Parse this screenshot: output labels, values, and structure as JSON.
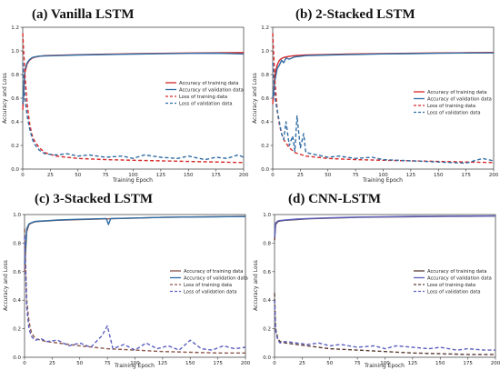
{
  "chart_data": [
    {
      "type": "line",
      "title": "(a)  Vanilla LSTM",
      "xlabel": "Training Epoch",
      "ylabel": "Accuracy and Loss",
      "xlim": [
        0,
        200
      ],
      "ylim": [
        0,
        1.2
      ],
      "xticks": [
        0,
        25,
        50,
        75,
        100,
        125,
        150,
        175,
        200
      ],
      "yticks": [
        0.0,
        0.2,
        0.4,
        0.6,
        0.8,
        1.0,
        1.2
      ],
      "legend_position": "right",
      "series": [
        {
          "name": "Accuracy of training data",
          "color": "#d62728",
          "dash": "solid",
          "x": [
            0,
            2,
            4,
            6,
            8,
            10,
            15,
            20,
            30,
            50,
            75,
            100,
            125,
            150,
            175,
            200
          ],
          "y": [
            0.5,
            0.82,
            0.89,
            0.92,
            0.935,
            0.945,
            0.955,
            0.96,
            0.963,
            0.968,
            0.972,
            0.976,
            0.979,
            0.982,
            0.984,
            0.986
          ]
        },
        {
          "name": "Accuracy of validation data",
          "color": "#2f6ca3",
          "dash": "solid",
          "x": [
            0,
            2,
            4,
            6,
            8,
            10,
            15,
            20,
            30,
            50,
            75,
            100,
            125,
            150,
            175,
            200
          ],
          "y": [
            0.55,
            0.84,
            0.9,
            0.925,
            0.94,
            0.948,
            0.956,
            0.958,
            0.96,
            0.965,
            0.969,
            0.973,
            0.976,
            0.979,
            0.981,
            0.975
          ]
        },
        {
          "name": "Loss of training data",
          "color": "#d62728",
          "dash": "dashed",
          "x": [
            0,
            2,
            4,
            6,
            8,
            10,
            15,
            20,
            30,
            40,
            50,
            75,
            100,
            125,
            150,
            175,
            200
          ],
          "y": [
            1.15,
            0.8,
            0.55,
            0.4,
            0.3,
            0.25,
            0.18,
            0.14,
            0.11,
            0.1,
            0.09,
            0.08,
            0.075,
            0.07,
            0.065,
            0.06,
            0.055
          ]
        },
        {
          "name": "Loss of validation data",
          "color": "#2f6ca3",
          "dash": "dashed",
          "x": [
            0,
            2,
            4,
            6,
            8,
            10,
            15,
            20,
            30,
            40,
            50,
            60,
            75,
            90,
            100,
            110,
            125,
            140,
            150,
            165,
            175,
            185,
            195,
            200
          ],
          "y": [
            0.9,
            0.6,
            0.45,
            0.35,
            0.28,
            0.22,
            0.16,
            0.13,
            0.12,
            0.13,
            0.11,
            0.12,
            0.1,
            0.11,
            0.09,
            0.12,
            0.1,
            0.09,
            0.11,
            0.08,
            0.1,
            0.09,
            0.12,
            0.1
          ]
        }
      ]
    },
    {
      "type": "line",
      "title": "(b)  2-Stacked LSTM",
      "xlabel": "Training Epoch",
      "ylabel": "Accuracy and Loss",
      "xlim": [
        0,
        200
      ],
      "ylim": [
        0,
        1.2
      ],
      "xticks": [
        0,
        25,
        50,
        75,
        100,
        125,
        150,
        175,
        200
      ],
      "yticks": [
        0.0,
        0.2,
        0.4,
        0.6,
        0.8,
        1.0,
        1.2
      ],
      "legend_position": "right",
      "series": [
        {
          "name": "Accuracy of training data",
          "color": "#d62728",
          "dash": "solid",
          "x": [
            0,
            2,
            4,
            6,
            8,
            10,
            15,
            20,
            30,
            50,
            75,
            100,
            125,
            150,
            175,
            200
          ],
          "y": [
            0.55,
            0.8,
            0.88,
            0.92,
            0.935,
            0.945,
            0.955,
            0.96,
            0.965,
            0.97,
            0.975,
            0.978,
            0.98,
            0.983,
            0.985,
            0.987
          ]
        },
        {
          "name": "Accuracy of validation data",
          "color": "#2f6ca3",
          "dash": "solid",
          "x": [
            0,
            2,
            4,
            6,
            8,
            10,
            12,
            15,
            20,
            25,
            30,
            50,
            75,
            100,
            125,
            150,
            175,
            200
          ],
          "y": [
            0.6,
            0.75,
            0.85,
            0.88,
            0.92,
            0.9,
            0.94,
            0.93,
            0.95,
            0.955,
            0.96,
            0.965,
            0.97,
            0.975,
            0.977,
            0.98,
            0.982,
            0.983
          ]
        },
        {
          "name": "Loss of training data",
          "color": "#d62728",
          "dash": "dashed",
          "x": [
            0,
            2,
            4,
            6,
            8,
            10,
            15,
            20,
            30,
            40,
            50,
            75,
            100,
            125,
            150,
            175,
            200
          ],
          "y": [
            1.15,
            0.75,
            0.5,
            0.38,
            0.3,
            0.25,
            0.18,
            0.14,
            0.11,
            0.1,
            0.09,
            0.08,
            0.075,
            0.07,
            0.065,
            0.06,
            0.055
          ]
        },
        {
          "name": "Loss of validation data",
          "color": "#2f6ca3",
          "dash": "dashed",
          "x": [
            0,
            2,
            4,
            6,
            8,
            10,
            12,
            15,
            18,
            20,
            22,
            25,
            28,
            30,
            35,
            40,
            50,
            60,
            75,
            90,
            100,
            125,
            150,
            175,
            190,
            200
          ],
          "y": [
            0.9,
            0.6,
            0.5,
            0.4,
            0.3,
            0.25,
            0.4,
            0.2,
            0.28,
            0.15,
            0.45,
            0.18,
            0.3,
            0.14,
            0.13,
            0.12,
            0.1,
            0.11,
            0.09,
            0.1,
            0.08,
            0.07,
            0.06,
            0.05,
            0.09,
            0.07
          ]
        }
      ]
    },
    {
      "type": "line",
      "title": "(c)  3-Stacked LSTM",
      "xlabel": "Training Epoch",
      "ylabel": "Accuracy and Loss",
      "xlim": [
        0,
        200
      ],
      "ylim": [
        0,
        1.0
      ],
      "xticks": [
        0,
        25,
        50,
        75,
        100,
        125,
        150,
        175,
        200
      ],
      "yticks": [
        0.0,
        0.2,
        0.4,
        0.6,
        0.8,
        1.0
      ],
      "legend_position": "right",
      "series": [
        {
          "name": "Accuracy of training data",
          "color": "#8c564b",
          "dash": "solid",
          "x": [
            0,
            2,
            4,
            6,
            8,
            10,
            20,
            30,
            50,
            75,
            100,
            125,
            150,
            175,
            200
          ],
          "y": [
            0.6,
            0.88,
            0.93,
            0.94,
            0.945,
            0.95,
            0.955,
            0.96,
            0.965,
            0.97,
            0.975,
            0.98,
            0.983,
            0.985,
            0.987
          ]
        },
        {
          "name": "Accuracy of validation data",
          "color": "#2f6ca3",
          "dash": "solid",
          "x": [
            0,
            2,
            4,
            6,
            8,
            10,
            20,
            30,
            50,
            74,
            76,
            78,
            100,
            125,
            150,
            175,
            200
          ],
          "y": [
            0.65,
            0.9,
            0.935,
            0.942,
            0.948,
            0.952,
            0.957,
            0.962,
            0.967,
            0.972,
            0.93,
            0.972,
            0.976,
            0.98,
            0.983,
            0.985,
            0.986
          ]
        },
        {
          "name": "Loss of training data",
          "color": "#8c564b",
          "dash": "dashed",
          "x": [
            0,
            2,
            4,
            6,
            8,
            10,
            15,
            20,
            30,
            50,
            75,
            100,
            125,
            150,
            175,
            200
          ],
          "y": [
            0.9,
            0.4,
            0.25,
            0.18,
            0.15,
            0.13,
            0.12,
            0.11,
            0.1,
            0.08,
            0.06,
            0.05,
            0.04,
            0.035,
            0.03,
            0.03
          ]
        },
        {
          "name": "Loss of validation data",
          "color": "#5b5fbf",
          "dash": "dashed",
          "x": [
            0,
            2,
            4,
            6,
            8,
            10,
            15,
            20,
            30,
            40,
            50,
            60,
            70,
            75,
            80,
            90,
            100,
            110,
            120,
            130,
            140,
            150,
            160,
            170,
            180,
            190,
            200
          ],
          "y": [
            0.85,
            0.35,
            0.2,
            0.15,
            0.13,
            0.12,
            0.13,
            0.11,
            0.12,
            0.08,
            0.1,
            0.07,
            0.15,
            0.22,
            0.06,
            0.09,
            0.05,
            0.1,
            0.06,
            0.08,
            0.05,
            0.12,
            0.06,
            0.05,
            0.08,
            0.06,
            0.07
          ]
        }
      ]
    },
    {
      "type": "line",
      "title": "(d)  CNN-LSTM",
      "xlabel": "Training Epoch",
      "ylabel": "Accuracy and Loss",
      "xlim": [
        0,
        200
      ],
      "ylim": [
        0,
        1.0
      ],
      "xticks": [
        0,
        25,
        50,
        75,
        100,
        125,
        150,
        175,
        200
      ],
      "yticks": [
        0.0,
        0.2,
        0.4,
        0.6,
        0.8,
        1.0
      ],
      "legend_position": "right",
      "series": [
        {
          "name": "Accuracy of training data",
          "color": "#5a3b32",
          "dash": "solid",
          "x": [
            0,
            1,
            3,
            5,
            10,
            20,
            30,
            50,
            75,
            100,
            125,
            150,
            175,
            200
          ],
          "y": [
            0.82,
            0.93,
            0.95,
            0.955,
            0.96,
            0.965,
            0.97,
            0.975,
            0.98,
            0.983,
            0.985,
            0.987,
            0.988,
            0.99
          ]
        },
        {
          "name": "Accuracy of validation data",
          "color": "#5b5fbf",
          "dash": "solid",
          "x": [
            0,
            1,
            3,
            5,
            10,
            20,
            30,
            50,
            75,
            100,
            125,
            150,
            175,
            200
          ],
          "y": [
            0.84,
            0.94,
            0.955,
            0.958,
            0.962,
            0.968,
            0.972,
            0.977,
            0.982,
            0.985,
            0.987,
            0.988,
            0.989,
            0.99
          ]
        },
        {
          "name": "Loss of training data",
          "color": "#5a3b32",
          "dash": "dashed",
          "x": [
            0,
            1,
            3,
            5,
            10,
            20,
            30,
            50,
            75,
            100,
            125,
            150,
            175,
            200
          ],
          "y": [
            0.45,
            0.2,
            0.13,
            0.11,
            0.1,
            0.09,
            0.08,
            0.06,
            0.05,
            0.04,
            0.03,
            0.025,
            0.02,
            0.02
          ]
        },
        {
          "name": "Loss of validation data",
          "color": "#5b5fbf",
          "dash": "dashed",
          "x": [
            0,
            1,
            3,
            5,
            10,
            20,
            30,
            40,
            50,
            60,
            75,
            90,
            100,
            110,
            125,
            140,
            150,
            165,
            175,
            190,
            200
          ],
          "y": [
            0.4,
            0.18,
            0.12,
            0.1,
            0.11,
            0.1,
            0.09,
            0.1,
            0.08,
            0.09,
            0.07,
            0.08,
            0.06,
            0.08,
            0.07,
            0.06,
            0.07,
            0.05,
            0.06,
            0.05,
            0.05
          ]
        }
      ]
    }
  ]
}
